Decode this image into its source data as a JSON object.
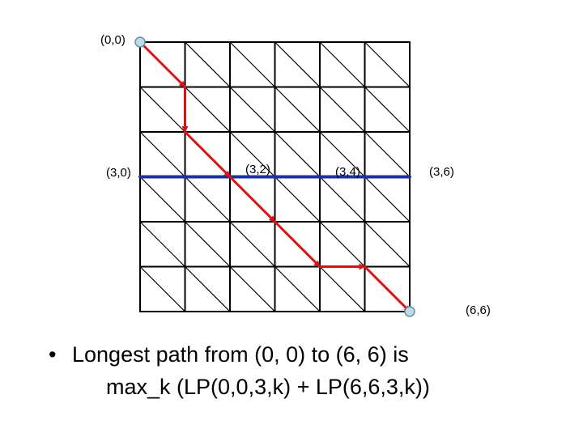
{
  "labels": {
    "start": "(0,0)",
    "row3_col0": "(3,0)",
    "row3_col2": "(3,2)",
    "row3_col4": "(3,4)",
    "row3_col6": "(3,6)",
    "end": "(6,6)"
  },
  "text": {
    "bullet": "•",
    "line1": "Longest path from (0, 0) to (6, 6) is",
    "line2": "max_k (LP(0,0,3,k) + LP(6,6,3,k))"
  },
  "colors": {
    "grid": "#000000",
    "path": "#dd1111",
    "middle_row": "#1a2fb0",
    "endpoint_fill": "#b9dce9",
    "endpoint_stroke": "#6a8fa0"
  },
  "grid": {
    "rows": 6,
    "cols": 6
  },
  "path_cells": [
    [
      0,
      0
    ],
    [
      1,
      1
    ],
    [
      2,
      1
    ],
    [
      3,
      2
    ],
    [
      4,
      3
    ],
    [
      5,
      4
    ],
    [
      5,
      5
    ],
    [
      6,
      6
    ]
  ]
}
